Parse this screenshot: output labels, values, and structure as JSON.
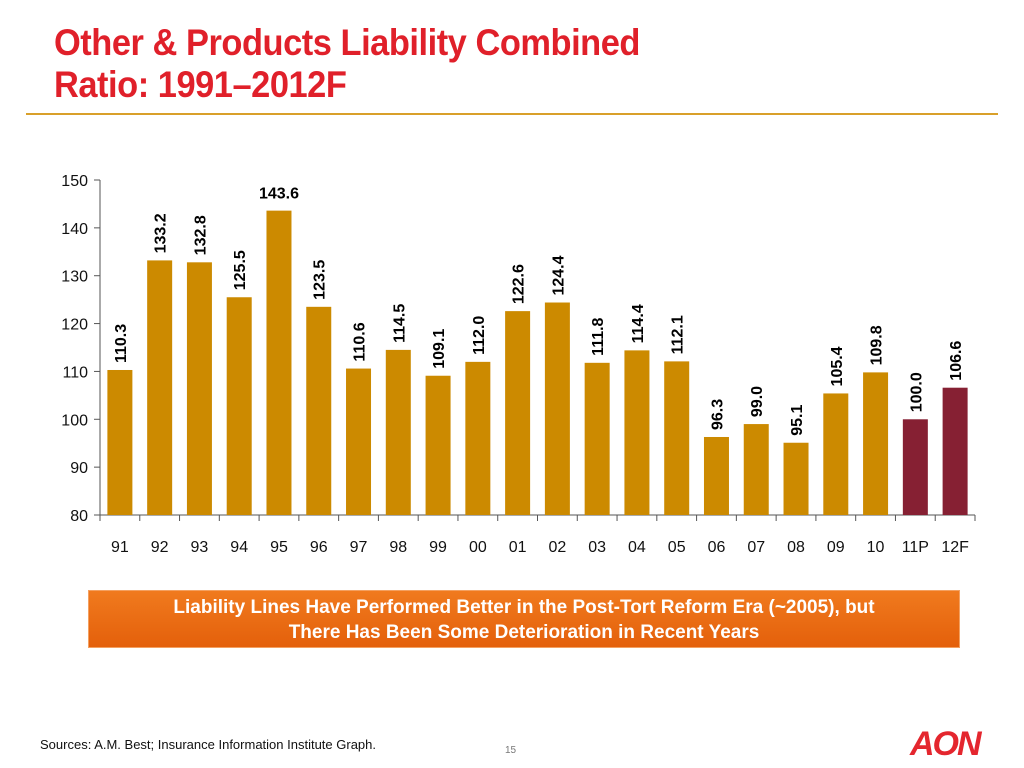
{
  "slide": {
    "title_line1": "Other & Products Liability Combined",
    "title_line2": "Ratio: 1991–2012F",
    "callout_line1": "Liability Lines Have Performed Better in the Post-Tort Reform Era (~2005), but",
    "callout_line2": "There Has Been Some Deterioration in Recent Years",
    "sources": "Sources: A.M. Best; Insurance Information Institute Graph.",
    "page_number": "15",
    "logo_text": "AON",
    "colors": {
      "title": "#e0202a",
      "rule": "#d9a02a",
      "actual_bar": "#cc8a00",
      "projected_bar": "#862033",
      "callout": "#ee6f12",
      "logo": "#e4262e"
    }
  },
  "chart_data": {
    "type": "bar",
    "title": "Other & Products Liability Combined Ratio: 1991–2012F",
    "xlabel": "",
    "ylabel": "",
    "categories": [
      "91",
      "92",
      "93",
      "94",
      "95",
      "96",
      "97",
      "98",
      "99",
      "00",
      "01",
      "02",
      "03",
      "04",
      "05",
      "06",
      "07",
      "08",
      "09",
      "10",
      "11P",
      "12F"
    ],
    "values": [
      110.3,
      133.2,
      132.8,
      125.5,
      143.6,
      123.5,
      110.6,
      114.5,
      109.1,
      112.0,
      122.6,
      124.4,
      111.8,
      114.4,
      112.1,
      96.3,
      99.0,
      95.1,
      105.4,
      109.8,
      100.0,
      106.6
    ],
    "labels": [
      "110.3",
      "133.2",
      "132.8",
      "125.5",
      "143.6",
      "123.5",
      "110.6",
      "114.5",
      "109.1",
      "112.0",
      "122.6",
      "124.4",
      "111.8",
      "114.4",
      "112.1",
      "96.3",
      "99.0",
      "95.1",
      "105.4",
      "109.8",
      "100.0",
      "106.6"
    ],
    "series_type": [
      "actual",
      "actual",
      "actual",
      "actual",
      "actual",
      "actual",
      "actual",
      "actual",
      "actual",
      "actual",
      "actual",
      "actual",
      "actual",
      "actual",
      "actual",
      "actual",
      "actual",
      "actual",
      "actual",
      "actual",
      "projected",
      "projected"
    ],
    "horizontal_label_index": 4,
    "ylim": [
      80,
      150
    ],
    "yticks": [
      80,
      90,
      100,
      110,
      120,
      130,
      140,
      150
    ],
    "grid": false,
    "legend": "none"
  }
}
